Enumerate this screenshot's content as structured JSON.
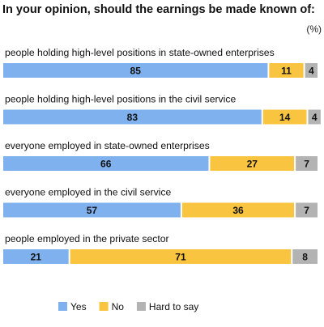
{
  "chart_data": {
    "type": "bar",
    "orientation": "horizontal",
    "stacked": true,
    "title": "In your opinion, should the earnings be made known of:",
    "unit": "(%)",
    "categories": [
      "people holding high-level positions in state-owned enterprises",
      "people holding high-level positions in the civil service",
      "everyone employed in state-owned enterprises",
      "everyone employed in the civil service",
      "people employed in the private sector"
    ],
    "series": [
      {
        "name": "Yes",
        "values": [
          85,
          83,
          66,
          57,
          21
        ],
        "color": "#7eb1ee"
      },
      {
        "name": "No",
        "values": [
          11,
          14,
          27,
          36,
          71
        ],
        "color": "#f9c43f"
      },
      {
        "name": "Hard to say",
        "values": [
          4,
          4,
          7,
          7,
          8
        ],
        "color": "#b3b3b3"
      }
    ],
    "xlim": [
      0,
      100
    ],
    "grid": false,
    "legend": "bottom-left"
  }
}
